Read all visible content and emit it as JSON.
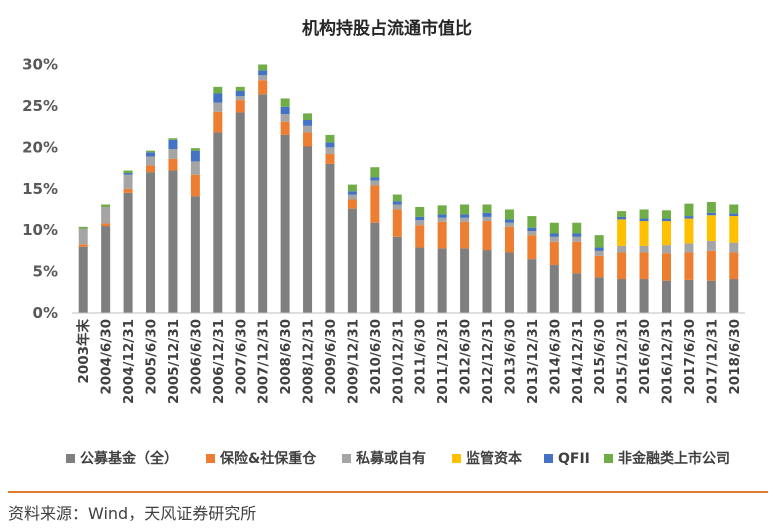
{
  "chart_data": {
    "type": "bar",
    "stacked": true,
    "title": "机构持股占流通市值比",
    "xlabel": "",
    "ylabel": "",
    "ylim": [
      0,
      30
    ],
    "yticks": [
      "30%",
      "25%",
      "20%",
      "15%",
      "10%",
      "5%",
      "0%"
    ],
    "ytick_values": [
      30,
      25,
      20,
      15,
      10,
      5,
      0
    ],
    "legend_position": "bottom",
    "categories": [
      "2003年末",
      "2004/6/30",
      "2004/12/31",
      "2005/6/30",
      "2005/12/31",
      "2006/6/30",
      "2006/12/31",
      "2007/6/30",
      "2007/12/31",
      "2008/6/30",
      "2008/12/31",
      "2009/6/30",
      "2009/12/31",
      "2010/6/30",
      "2010/12/31",
      "2011/6/30",
      "2011/12/31",
      "2012/6/30",
      "2012/12/31",
      "2013/6/30",
      "2013/12/31",
      "2014/6/30",
      "2014/12/31",
      "2015/6/30",
      "2015/12/31",
      "2016/6/30",
      "2016/12/31",
      "2017/6/30",
      "2017/12/31",
      "2018/6/30"
    ],
    "series": [
      {
        "name": "公募基金（全）",
        "color": "#7F7F7F",
        "values": [
          8.0,
          10.5,
          14.5,
          17.0,
          17.2,
          14.1,
          21.8,
          24.2,
          26.4,
          21.5,
          20.1,
          18.0,
          12.6,
          10.9,
          9.2,
          7.9,
          7.8,
          7.8,
          7.6,
          7.3,
          6.5,
          5.8,
          4.8,
          4.3,
          4.1,
          4.1,
          3.9,
          4.0,
          3.9,
          4.1
        ]
      },
      {
        "name": "保险&社保重仓",
        "color": "#ED7D31",
        "values": [
          0.3,
          0.3,
          0.5,
          0.8,
          1.4,
          2.6,
          2.5,
          1.5,
          1.7,
          1.6,
          1.7,
          1.2,
          1.1,
          4.5,
          3.3,
          2.7,
          3.2,
          3.2,
          3.5,
          3.1,
          2.9,
          2.8,
          3.8,
          2.6,
          3.2,
          3.2,
          3.3,
          3.3,
          3.6,
          3.2
        ]
      },
      {
        "name": "私募或自有",
        "color": "#A5A5A5",
        "values": [
          1.9,
          2.0,
          1.7,
          1.1,
          1.2,
          1.6,
          1.1,
          0.5,
          0.6,
          0.9,
          0.8,
          0.8,
          0.6,
          0.6,
          0.6,
          0.6,
          0.5,
          0.5,
          0.5,
          0.5,
          0.5,
          0.6,
          0.6,
          0.6,
          0.8,
          0.8,
          1.0,
          1.1,
          1.2,
          1.2
        ]
      },
      {
        "name": "监管资本",
        "color": "#FFC000",
        "values": [
          0,
          0,
          0,
          0,
          0,
          0,
          0,
          0,
          0,
          0,
          0,
          0,
          0,
          0,
          0,
          0,
          0,
          0,
          0,
          0,
          0,
          0,
          0,
          0,
          3.2,
          3.0,
          2.9,
          3.0,
          3.1,
          3.2
        ]
      },
      {
        "name": "QFII",
        "color": "#4472C4",
        "values": [
          0,
          0,
          0.2,
          0.5,
          1.1,
          1.3,
          1.1,
          0.6,
          0.6,
          0.9,
          0.7,
          0.6,
          0.4,
          0.4,
          0.4,
          0.4,
          0.4,
          0.4,
          0.5,
          0.4,
          0.4,
          0.4,
          0.4,
          0.4,
          0.3,
          0.3,
          0.3,
          0.3,
          0.3,
          0.3
        ]
      },
      {
        "name": "非金融类上市公司",
        "color": "#70AD47",
        "values": [
          0.2,
          0.3,
          0.3,
          0.2,
          0.2,
          0.3,
          0.8,
          0.5,
          0.7,
          1.0,
          0.8,
          0.9,
          0.8,
          1.2,
          0.8,
          1.2,
          1.1,
          1.2,
          1.0,
          1.2,
          1.4,
          1.3,
          1.3,
          1.5,
          0.7,
          1.1,
          1.0,
          1.5,
          1.3,
          1.1
        ]
      }
    ]
  },
  "source": "资料来源：Wind，天风证券研究所"
}
